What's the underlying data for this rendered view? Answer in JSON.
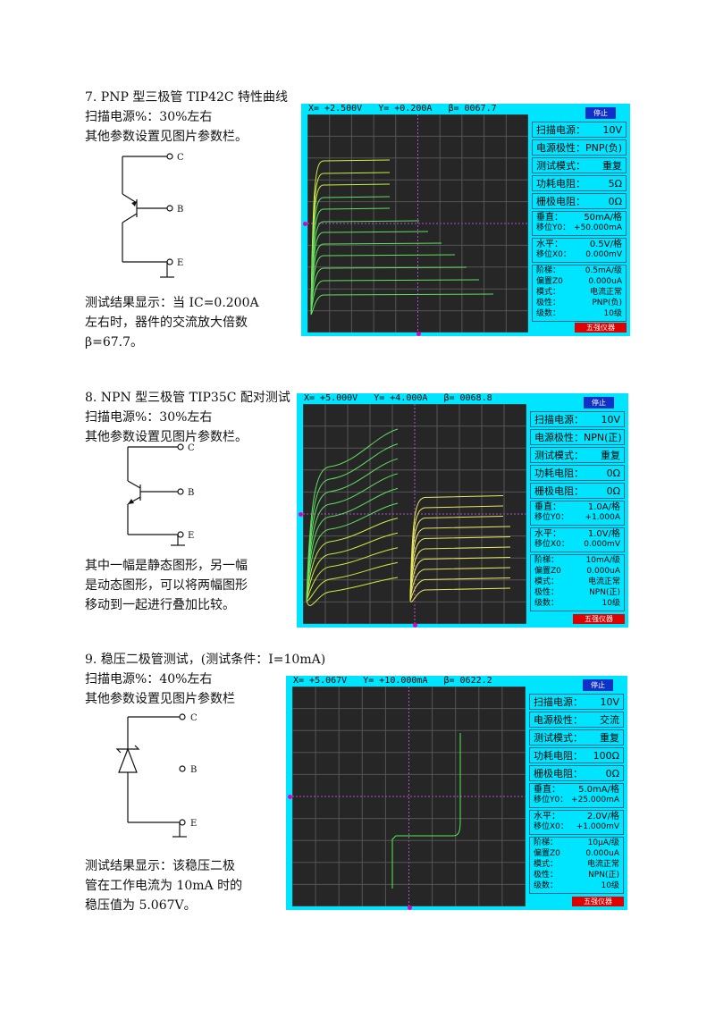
{
  "sections": [
    {
      "heading": "7. PNP 型三极管 TIP42C 特性曲线",
      "line1": "扫描电源%：30%左右",
      "line2": "其他参数设置见图片参数栏。",
      "result": [
        "测试结果显示：当 IC=0.200A",
        "左右时，器件的交流放大倍数",
        "β=67.7。"
      ],
      "pins": [
        "C",
        "B",
        "E"
      ],
      "scope": {
        "x": "X= +2.500V",
        "y": "Y= +0.200A",
        "beta": "β= 0067.7",
        "stop": "停止",
        "source": "10V",
        "polarity": "PNP(负)",
        "mode": "重复",
        "r_power": "5Ω",
        "r_gate": "0Ω",
        "vert": "50mA/格",
        "shift_y": "+50.000mA",
        "horiz": "0.5V/格",
        "shift_x": "0.000mV",
        "step": "0.5mA/级",
        "offset": "0.000uA",
        "mode2": "电流正常",
        "pol2": "PNP(负)",
        "stages": "10级",
        "brand": "五强仪器"
      }
    },
    {
      "heading": "8. NPN 型三极管 TIP35C 配对测试",
      "line1": "扫描电源%：30%左右",
      "line2": "其他参数设置见图片参数栏。",
      "result": [
        "其中一幅是静态图形，另一幅",
        "是动态图形，可以将两幅图形",
        "移动到一起进行叠加比较。"
      ],
      "pins": [
        "C",
        "B",
        "E"
      ],
      "scope": {
        "x": "X= +5.000V",
        "y": "Y= +4.000A",
        "beta": "β= 0068.8",
        "stop": "停止",
        "source": "10V",
        "polarity": "NPN(正)",
        "mode": "重复",
        "r_power": "0Ω",
        "r_gate": "0Ω",
        "vert": "1.0A/格",
        "shift_y": "+1.000A",
        "horiz": "1.0V/格",
        "shift_x": "0.000mV",
        "step": "10mA/级",
        "offset": "0.000uA",
        "mode2": "电流正常",
        "pol2": "NPN(正)",
        "stages": "10级",
        "brand": "五强仪器"
      }
    },
    {
      "heading": "9. 稳压二极管测试，(测试条件：I=10mA)",
      "line1": "扫描电源%：40%左右",
      "line2": "其他参数设置见图片参数栏",
      "result": [
        "测试结果显示：该稳压二极",
        "管在工作电流为 10mA 时的",
        "稳压值为 5.067V。"
      ],
      "pins": [
        "C",
        "B",
        "E"
      ],
      "scope": {
        "x": "X= +5.067V",
        "y": "Y= +10.000mA",
        "beta": "β= 0622.2",
        "stop": "停止",
        "source": "10V",
        "polarity": "交流",
        "mode": "重复",
        "r_power": "100Ω",
        "r_gate": "0Ω",
        "vert": "5.0mA/格",
        "shift_y": "+25.000mA",
        "horiz": "2.0V/格",
        "shift_x": "+1.000mV",
        "step": "10μA/级",
        "offset": "0.000uA",
        "mode2": "电流正常",
        "pol2": "NPN(正)",
        "stages": "10级",
        "brand": "五强仪器"
      }
    }
  ],
  "labels": {
    "source": "扫描电源：",
    "polarity": "电源极性：",
    "mode": "测试模式：",
    "r_power": "功耗电阻：",
    "r_gate": "栅极电阻：",
    "vert": "垂直：",
    "shift_y": "移位Y0：",
    "horiz": "水平：",
    "shift_x": "移位X0：",
    "step": "阶梯：",
    "offset": "偏置Z0",
    "mode2": "模式：",
    "pol2": "极性：",
    "stages": "级数："
  }
}
